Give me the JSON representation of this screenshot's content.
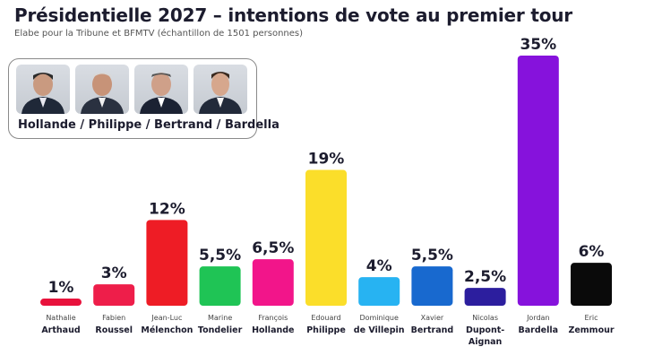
{
  "header": {
    "title": "Présidentielle 2027 – intentions de vote au premier tour",
    "subtitle": "Elabe pour la Tribune et  BFMTV (échantillon de 1501 personnes)"
  },
  "candidates_box": {
    "label": "Hollande / Philippe / Bertrand / Bardella",
    "photos": [
      "Hollande",
      "Philippe",
      "Bertrand",
      "Bardella"
    ]
  },
  "chart_data": {
    "type": "bar",
    "title": "Présidentielle 2027 – intentions de vote au premier tour",
    "ylim": [
      0,
      35
    ],
    "grid": false,
    "categories": [
      {
        "first": "Nathalie",
        "last": [
          "Arthaud"
        ],
        "value": 1,
        "label": "1%",
        "color": "#e8123c"
      },
      {
        "first": "Fabien",
        "last": [
          "Roussel"
        ],
        "value": 3,
        "label": "3%",
        "color": "#ee1e4a"
      },
      {
        "first": "Jean-Luc",
        "last": [
          "Mélenchon"
        ],
        "value": 12,
        "label": "12%",
        "color": "#ee1c25"
      },
      {
        "first": "Marine",
        "last": [
          "Tondelier"
        ],
        "value": 5.5,
        "label": "5,5%",
        "color": "#1fc455"
      },
      {
        "first": "François",
        "last": [
          "Hollande"
        ],
        "value": 6.5,
        "label": "6,5%",
        "color": "#f2158a"
      },
      {
        "first": "Edouard",
        "last": [
          "Philippe"
        ],
        "value": 19,
        "label": "19%",
        "color": "#fbde2a"
      },
      {
        "first": "Dominique",
        "last": [
          "de Villepin"
        ],
        "value": 4,
        "label": "4%",
        "color": "#27b3f2"
      },
      {
        "first": "Xavier",
        "last": [
          "Bertrand"
        ],
        "value": 5.5,
        "label": "5,5%",
        "color": "#1869cf"
      },
      {
        "first": "Nicolas",
        "last": [
          "Dupont-",
          "Aignan"
        ],
        "value": 2.5,
        "label": "2,5%",
        "color": "#2c1e9e"
      },
      {
        "first": "Jordan",
        "last": [
          "Bardella"
        ],
        "value": 35,
        "label": "35%",
        "color": "#8612dc"
      },
      {
        "first": "Eric",
        "last": [
          "Zemmour"
        ],
        "value": 6,
        "label": "6%",
        "color": "#0a0a0a"
      }
    ]
  }
}
